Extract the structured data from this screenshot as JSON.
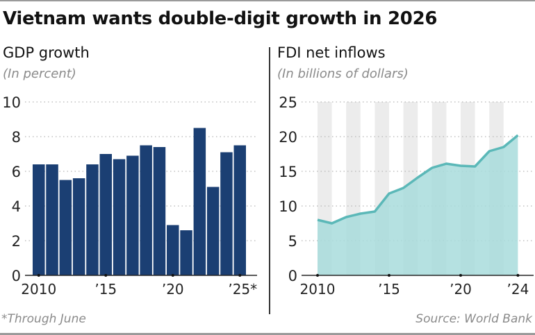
{
  "title": "Vietnam wants double-digit growth in 2026",
  "footnote": "*Through June",
  "source": "Source: World Bank",
  "colors": {
    "bar": "#1b3f73",
    "area": "#a8dcdc",
    "line": "#5bb8b8",
    "band": "#ececec"
  },
  "chart_data": [
    {
      "type": "bar",
      "title": "GDP growth",
      "ylabel": "(In percent)",
      "xlabel": "",
      "categories": [
        "2010",
        "2011",
        "2012",
        "2013",
        "2014",
        "2015",
        "2016",
        "2017",
        "2018",
        "2019",
        "2020",
        "2021",
        "2022",
        "2023",
        "2024",
        "2025"
      ],
      "values": [
        6.4,
        6.4,
        5.5,
        5.6,
        6.4,
        7.0,
        6.7,
        6.9,
        7.5,
        7.4,
        2.9,
        2.6,
        8.5,
        5.1,
        7.1,
        7.5
      ],
      "ylim": [
        0,
        10
      ],
      "yticks": [
        0,
        2,
        4,
        6,
        8,
        10
      ],
      "xticks": [
        {
          "index": 0,
          "label": "2010"
        },
        {
          "index": 5,
          "label": "’15"
        },
        {
          "index": 10,
          "label": "’20"
        },
        {
          "index": 15,
          "label": "’25*"
        }
      ],
      "grid": true
    },
    {
      "type": "area",
      "title": "FDI net inflows",
      "ylabel": "(In billions of dollars)",
      "xlabel": "",
      "x": [
        2010,
        2011,
        2012,
        2013,
        2014,
        2015,
        2016,
        2017,
        2018,
        2019,
        2020,
        2021,
        2022,
        2023,
        2024
      ],
      "values": [
        8.0,
        7.5,
        8.4,
        8.9,
        9.2,
        11.8,
        12.6,
        14.1,
        15.5,
        16.1,
        15.8,
        15.7,
        17.9,
        18.5,
        20.2
      ],
      "ylim": [
        0,
        25
      ],
      "yticks": [
        0,
        5,
        10,
        15,
        20,
        25
      ],
      "xticks": [
        {
          "year": 2010,
          "label": "2010"
        },
        {
          "year": 2015,
          "label": "’15"
        },
        {
          "year": 2020,
          "label": "’20"
        },
        {
          "year": 2024,
          "label": "’24"
        }
      ],
      "shaded_years": [
        2010,
        2012,
        2014,
        2016,
        2018,
        2020,
        2022
      ],
      "grid": true
    }
  ]
}
